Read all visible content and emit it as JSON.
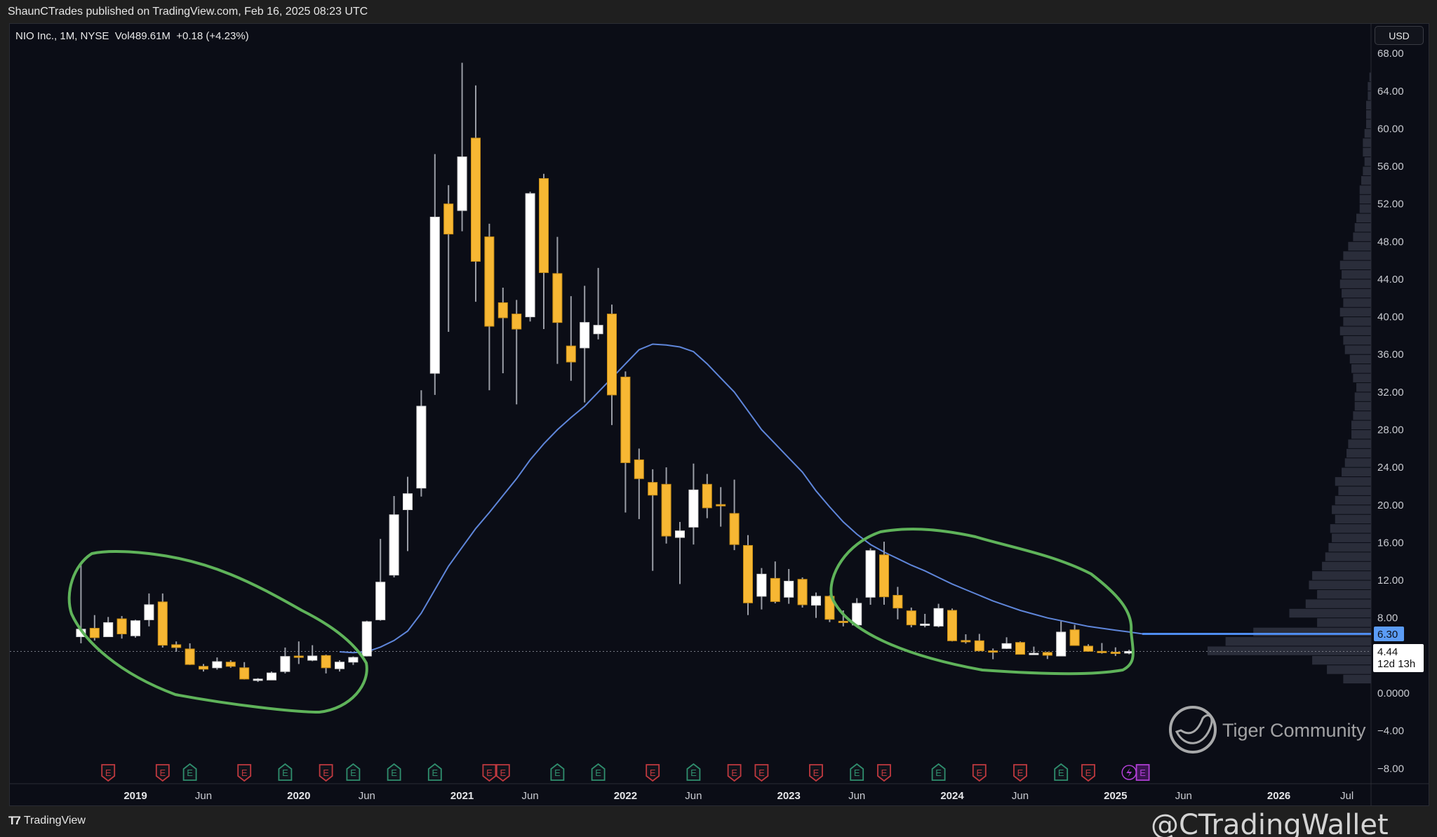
{
  "caption": "ShaunCTrades published on TradingView.com, Feb 16, 2025 08:23 UTC",
  "legend": "NIO Inc., 1M, NYSE  Vol489.61M  +0.18 (+4.23%)",
  "currency_button": "USD",
  "footer_brand": "TradingView",
  "watermarks": {
    "community": "Tiger Community",
    "handle": "@CTradingWallet"
  },
  "price_line": {
    "value_label": "6.30",
    "color": "#4f8df0"
  },
  "last_price": {
    "value": "4.44",
    "countdown": "12d 13h"
  },
  "earnings_label": "E",
  "colors": {
    "up": "#ffffff",
    "down": "#f7b733",
    "wick": "#9a9da6",
    "ma": "#5f86da",
    "annotation": "#5fb35a",
    "earn_miss": "#c0393f",
    "earn_beat": "#2f8f6e",
    "earn_upcoming": "#b13fd6"
  },
  "chart_data": {
    "type": "candlestick",
    "symbol": "NIO",
    "interval": "1M",
    "first_bar": "2018-09",
    "ylim": [
      -8,
      68
    ],
    "price_ticks": [
      "68.00",
      "64.00",
      "60.00",
      "56.00",
      "52.00",
      "48.00",
      "44.00",
      "40.00",
      "36.00",
      "32.00",
      "28.00",
      "24.00",
      "20.00",
      "16.00",
      "12.00",
      "8.00",
      "0.0000",
      "−4.00",
      "−8.00"
    ],
    "time_ticks": [
      {
        "label": "2019",
        "m": 4,
        "year": true
      },
      {
        "label": "Jun",
        "m": 9
      },
      {
        "label": "2020",
        "m": 16,
        "year": true
      },
      {
        "label": "Jun",
        "m": 21
      },
      {
        "label": "2021",
        "m": 28,
        "year": true
      },
      {
        "label": "Jun",
        "m": 33
      },
      {
        "label": "2022",
        "m": 40,
        "year": true
      },
      {
        "label": "Jun",
        "m": 45
      },
      {
        "label": "2023",
        "m": 52,
        "year": true
      },
      {
        "label": "Jun",
        "m": 57
      },
      {
        "label": "2024",
        "m": 64,
        "year": true
      },
      {
        "label": "Jun",
        "m": 69
      },
      {
        "label": "2025",
        "m": 76,
        "year": true
      },
      {
        "label": "Jun",
        "m": 81
      },
      {
        "label": "2026",
        "m": 88,
        "year": true
      },
      {
        "label": "Jul",
        "m": 93
      }
    ],
    "ohlc": [
      [
        6.0,
        13.8,
        5.3,
        6.8
      ],
      [
        6.9,
        8.3,
        5.6,
        5.9
      ],
      [
        6.0,
        8.1,
        6.0,
        7.5
      ],
      [
        7.9,
        8.2,
        5.8,
        6.3
      ],
      [
        6.1,
        7.8,
        5.9,
        7.7
      ],
      [
        7.8,
        10.6,
        7.1,
        9.4
      ],
      [
        9.7,
        10.6,
        4.85,
        5.1
      ],
      [
        5.15,
        5.5,
        4.4,
        4.85
      ],
      [
        4.7,
        5.3,
        3.0,
        3.05
      ],
      [
        2.85,
        3.1,
        2.3,
        2.55
      ],
      [
        2.7,
        3.8,
        2.5,
        3.35
      ],
      [
        3.3,
        3.5,
        2.7,
        2.85
      ],
      [
        2.7,
        3.3,
        1.45,
        1.5
      ],
      [
        1.42,
        1.6,
        1.19,
        1.5
      ],
      [
        1.4,
        2.3,
        1.4,
        2.15
      ],
      [
        2.3,
        4.85,
        2.1,
        3.9
      ],
      [
        3.95,
        5.5,
        3.1,
        3.8
      ],
      [
        3.5,
        5.1,
        3.4,
        3.95
      ],
      [
        4.0,
        4.1,
        2.1,
        2.7
      ],
      [
        2.6,
        3.5,
        2.3,
        3.3
      ],
      [
        3.3,
        3.9,
        3.0,
        3.8
      ],
      [
        3.95,
        7.7,
        3.9,
        7.6
      ],
      [
        7.8,
        16.4,
        7.7,
        11.8
      ],
      [
        12.55,
        20.95,
        12.3,
        18.96
      ],
      [
        19.5,
        23.0,
        15.1,
        21.2
      ],
      [
        21.8,
        32.2,
        20.9,
        30.5
      ],
      [
        34.0,
        57.3,
        31.7,
        50.6
      ],
      [
        52.0,
        54.0,
        38.4,
        48.8
      ],
      [
        51.3,
        67.0,
        49.1,
        57.0
      ],
      [
        59.0,
        64.6,
        41.6,
        45.9
      ],
      [
        48.5,
        49.9,
        32.2,
        39.0
      ],
      [
        41.5,
        43.1,
        34.0,
        39.9
      ],
      [
        40.3,
        41.8,
        30.7,
        38.7
      ],
      [
        40.0,
        53.3,
        39.5,
        53.1
      ],
      [
        54.7,
        55.2,
        38.7,
        44.7
      ],
      [
        44.6,
        48.5,
        35.0,
        39.4
      ],
      [
        36.9,
        42.2,
        33.2,
        35.2
      ],
      [
        36.7,
        43.3,
        30.9,
        39.4
      ],
      [
        38.2,
        45.2,
        37.6,
        39.1
      ],
      [
        40.3,
        41.3,
        28.5,
        31.7
      ],
      [
        33.6,
        34.2,
        19.2,
        24.5
      ],
      [
        24.8,
        26.0,
        18.5,
        22.8
      ],
      [
        22.4,
        23.8,
        13.0,
        21.05
      ],
      [
        22.2,
        24.0,
        15.9,
        16.7
      ],
      [
        16.55,
        18.2,
        11.6,
        17.25
      ],
      [
        17.65,
        24.4,
        15.8,
        21.6
      ],
      [
        22.2,
        23.3,
        18.6,
        19.7
      ],
      [
        20.05,
        21.9,
        17.7,
        19.9
      ],
      [
        19.1,
        22.7,
        15.2,
        15.8
      ],
      [
        15.7,
        16.8,
        8.3,
        9.6
      ],
      [
        10.3,
        13.3,
        8.9,
        12.65
      ],
      [
        12.2,
        14.0,
        9.55,
        9.74
      ],
      [
        10.2,
        13.2,
        9.5,
        11.9
      ],
      [
        12.1,
        12.3,
        9.1,
        9.4
      ],
      [
        9.35,
        10.7,
        8.0,
        10.3
      ],
      [
        10.3,
        10.4,
        7.55,
        7.85
      ],
      [
        7.65,
        8.8,
        7.1,
        7.5
      ],
      [
        7.25,
        10.1,
        7.0,
        9.55
      ],
      [
        10.2,
        15.4,
        9.4,
        15.15
      ],
      [
        14.7,
        16.1,
        9.4,
        10.24
      ],
      [
        10.4,
        11.3,
        7.85,
        9.05
      ],
      [
        8.75,
        9.1,
        7.0,
        7.26
      ],
      [
        7.3,
        8.43,
        7.0,
        7.35
      ],
      [
        7.13,
        9.5,
        7.0,
        9.0
      ],
      [
        8.8,
        9.0,
        5.5,
        5.57
      ],
      [
        5.6,
        6.26,
        5.27,
        5.55
      ],
      [
        5.57,
        6.3,
        4.5,
        4.5
      ],
      [
        4.5,
        4.75,
        3.61,
        4.48
      ],
      [
        4.75,
        5.94,
        4.7,
        5.27
      ],
      [
        5.39,
        5.5,
        4.13,
        4.13
      ],
      [
        4.2,
        4.95,
        4.1,
        4.24
      ],
      [
        4.33,
        4.4,
        3.63,
        4.03
      ],
      [
        3.95,
        7.63,
        3.95,
        6.49
      ],
      [
        6.73,
        7.26,
        5.07,
        5.07
      ],
      [
        5.0,
        5.2,
        4.4,
        4.45
      ],
      [
        4.45,
        5.33,
        4.2,
        4.36
      ],
      [
        4.36,
        4.87,
        3.95,
        4.26
      ],
      [
        4.26,
        4.62,
        4.13,
        4.44
      ]
    ],
    "moving_average": {
      "start_m": 19,
      "values": [
        4.4,
        4.3,
        4.4,
        4.9,
        5.6,
        6.6,
        8.5,
        11.0,
        13.5,
        15.5,
        17.5,
        19.2,
        21.0,
        22.8,
        24.8,
        26.5,
        28.0,
        29.3,
        30.5,
        32.0,
        33.5,
        35.0,
        36.5,
        37.1,
        37.0,
        36.8,
        36.3,
        35.0,
        33.5,
        32.0,
        30.0,
        28.0,
        26.5,
        25.0,
        23.5,
        21.5,
        19.8,
        18.2,
        16.9,
        15.8,
        15.0,
        14.3,
        13.6,
        13.0,
        12.3,
        11.6,
        11.0,
        10.4,
        9.8,
        9.3,
        8.8,
        8.4,
        8.0,
        7.7,
        7.4,
        7.1,
        6.9,
        6.7,
        6.5,
        6.3
      ]
    },
    "volume_profile": {
      "bin_start": 1,
      "bin_size": 1,
      "relative": [
        17,
        27,
        36,
        100,
        89,
        72,
        33,
        50,
        40,
        33,
        38,
        36,
        30,
        28,
        26,
        24,
        25,
        22,
        24,
        22,
        20,
        22,
        18,
        16,
        15,
        14,
        12,
        12,
        11,
        10,
        10,
        9,
        11,
        12,
        13,
        16,
        17,
        19,
        17,
        19,
        17,
        18,
        19,
        18,
        19,
        17,
        14,
        11,
        10,
        9,
        7,
        7,
        7,
        6,
        5,
        4,
        5,
        5,
        4,
        3,
        3,
        3,
        2,
        2,
        1
      ]
    },
    "earnings": [
      {
        "m": 2,
        "type": "miss"
      },
      {
        "m": 6,
        "type": "miss"
      },
      {
        "m": 8,
        "type": "beat"
      },
      {
        "m": 12,
        "type": "miss"
      },
      {
        "m": 15,
        "type": "beat"
      },
      {
        "m": 18,
        "type": "miss"
      },
      {
        "m": 20,
        "type": "beat"
      },
      {
        "m": 23,
        "type": "beat"
      },
      {
        "m": 26,
        "type": "beat"
      },
      {
        "m": 30,
        "type": "miss"
      },
      {
        "m": 31,
        "type": "miss"
      },
      {
        "m": 35,
        "type": "beat"
      },
      {
        "m": 38,
        "type": "beat"
      },
      {
        "m": 42,
        "type": "miss"
      },
      {
        "m": 45,
        "type": "beat"
      },
      {
        "m": 48,
        "type": "miss"
      },
      {
        "m": 50,
        "type": "miss"
      },
      {
        "m": 54,
        "type": "miss"
      },
      {
        "m": 57,
        "type": "beat"
      },
      {
        "m": 59,
        "type": "miss"
      },
      {
        "m": 63,
        "type": "beat"
      },
      {
        "m": 66,
        "type": "miss"
      },
      {
        "m": 69,
        "type": "miss"
      },
      {
        "m": 72,
        "type": "beat"
      },
      {
        "m": 74,
        "type": "miss"
      },
      {
        "m": 77,
        "type": "dividend-split"
      },
      {
        "m": 78,
        "type": "upcoming"
      }
    ]
  }
}
